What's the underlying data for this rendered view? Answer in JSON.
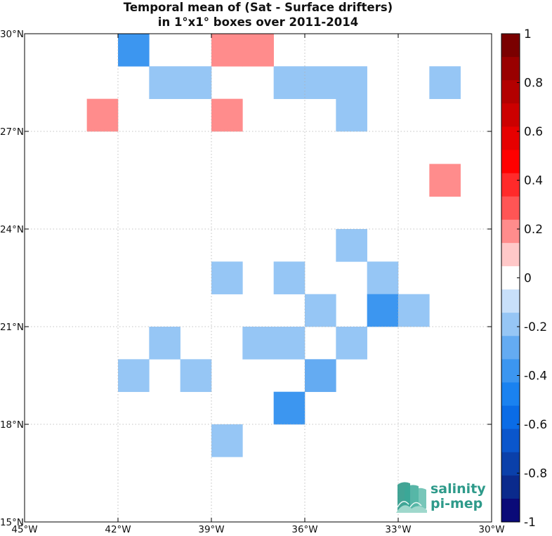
{
  "chart_data": {
    "type": "heatmap",
    "title": "Temporal mean of (Sat - Surface drifters)",
    "subtitle": "in 1°x1° boxes over 2011-2014",
    "xlabel": "",
    "ylabel": "",
    "xlim": [
      -45,
      -30
    ],
    "ylim": [
      15,
      30
    ],
    "x_ticks": [
      {
        "value": -45,
        "label": "45°W"
      },
      {
        "value": -42,
        "label": "42°W"
      },
      {
        "value": -39,
        "label": "39°W"
      },
      {
        "value": -36,
        "label": "36°W"
      },
      {
        "value": -33,
        "label": "33°W"
      },
      {
        "value": -30,
        "label": "30°W"
      }
    ],
    "y_ticks": [
      {
        "value": 15,
        "label": "15°N"
      },
      {
        "value": 18,
        "label": "18°N"
      },
      {
        "value": 21,
        "label": "21°N"
      },
      {
        "value": 24,
        "label": "24°N"
      },
      {
        "value": 27,
        "label": "27°N"
      },
      {
        "value": 30,
        "label": "30°N"
      }
    ],
    "grid": true,
    "cells": [
      {
        "lon": -42,
        "lat": 29,
        "value": -0.35
      },
      {
        "lon": -39,
        "lat": 29,
        "value": 0.15
      },
      {
        "lon": -38,
        "lat": 29,
        "value": 0.15
      },
      {
        "lon": -41,
        "lat": 28,
        "value": -0.15
      },
      {
        "lon": -40,
        "lat": 28,
        "value": -0.15
      },
      {
        "lon": -37,
        "lat": 28,
        "value": -0.15
      },
      {
        "lon": -36,
        "lat": 28,
        "value": -0.15
      },
      {
        "lon": -35,
        "lat": 28,
        "value": -0.15
      },
      {
        "lon": -32,
        "lat": 28,
        "value": -0.15
      },
      {
        "lon": -43,
        "lat": 27,
        "value": 0.15
      },
      {
        "lon": -39,
        "lat": 27,
        "value": 0.15
      },
      {
        "lon": -35,
        "lat": 27,
        "value": -0.15
      },
      {
        "lon": -32,
        "lat": 25,
        "value": 0.15
      },
      {
        "lon": -35,
        "lat": 23,
        "value": -0.15
      },
      {
        "lon": -39,
        "lat": 22,
        "value": -0.15
      },
      {
        "lon": -37,
        "lat": 22,
        "value": -0.15
      },
      {
        "lon": -34,
        "lat": 22,
        "value": -0.15
      },
      {
        "lon": -36,
        "lat": 21,
        "value": -0.15
      },
      {
        "lon": -34,
        "lat": 21,
        "value": -0.35
      },
      {
        "lon": -33,
        "lat": 21,
        "value": -0.15
      },
      {
        "lon": -41,
        "lat": 20,
        "value": -0.15
      },
      {
        "lon": -38,
        "lat": 20,
        "value": -0.15
      },
      {
        "lon": -37,
        "lat": 20,
        "value": -0.15
      },
      {
        "lon": -35,
        "lat": 20,
        "value": -0.15
      },
      {
        "lon": -42,
        "lat": 19,
        "value": -0.15
      },
      {
        "lon": -40,
        "lat": 19,
        "value": -0.15
      },
      {
        "lon": -36,
        "lat": 19,
        "value": -0.25
      },
      {
        "lon": -37,
        "lat": 18,
        "value": -0.35
      },
      {
        "lon": -39,
        "lat": 17,
        "value": -0.15
      }
    ],
    "colorbar": {
      "range": [
        -1,
        1
      ],
      "ticks": [
        {
          "value": 1,
          "label": "1"
        },
        {
          "value": 0.8,
          "label": "0.8"
        },
        {
          "value": 0.6,
          "label": "0.6"
        },
        {
          "value": 0.4,
          "label": "0.4"
        },
        {
          "value": 0.2,
          "label": "0.2"
        },
        {
          "value": 0,
          "label": "0"
        },
        {
          "value": -0.2,
          "label": "-0.2"
        },
        {
          "value": -0.4,
          "label": "-0.4"
        },
        {
          "value": -0.6,
          "label": "-0.6"
        },
        {
          "value": -0.8,
          "label": "-0.8"
        },
        {
          "value": -1,
          "label": "-1"
        }
      ],
      "colors_top_to_bottom": [
        "#7a0000",
        "#990000",
        "#b30000",
        "#cc0000",
        "#e60000",
        "#ff0000",
        "#ff2a2a",
        "#ff5555",
        "#ff8c8c",
        "#ffc8c8",
        "#ffffff",
        "#c8e0fa",
        "#96c6f5",
        "#64abf2",
        "#3c96f0",
        "#1a82f0",
        "#0a6ce6",
        "#0a56cc",
        "#0a40aa",
        "#0a2a8c",
        "#0a0a78"
      ]
    }
  },
  "logo": {
    "line1": "salinity",
    "line2": "pi-mep"
  },
  "colors": {
    "grid": "#b0b0b0",
    "frame": "#000000",
    "logo_teal": "#2e9a8a"
  }
}
